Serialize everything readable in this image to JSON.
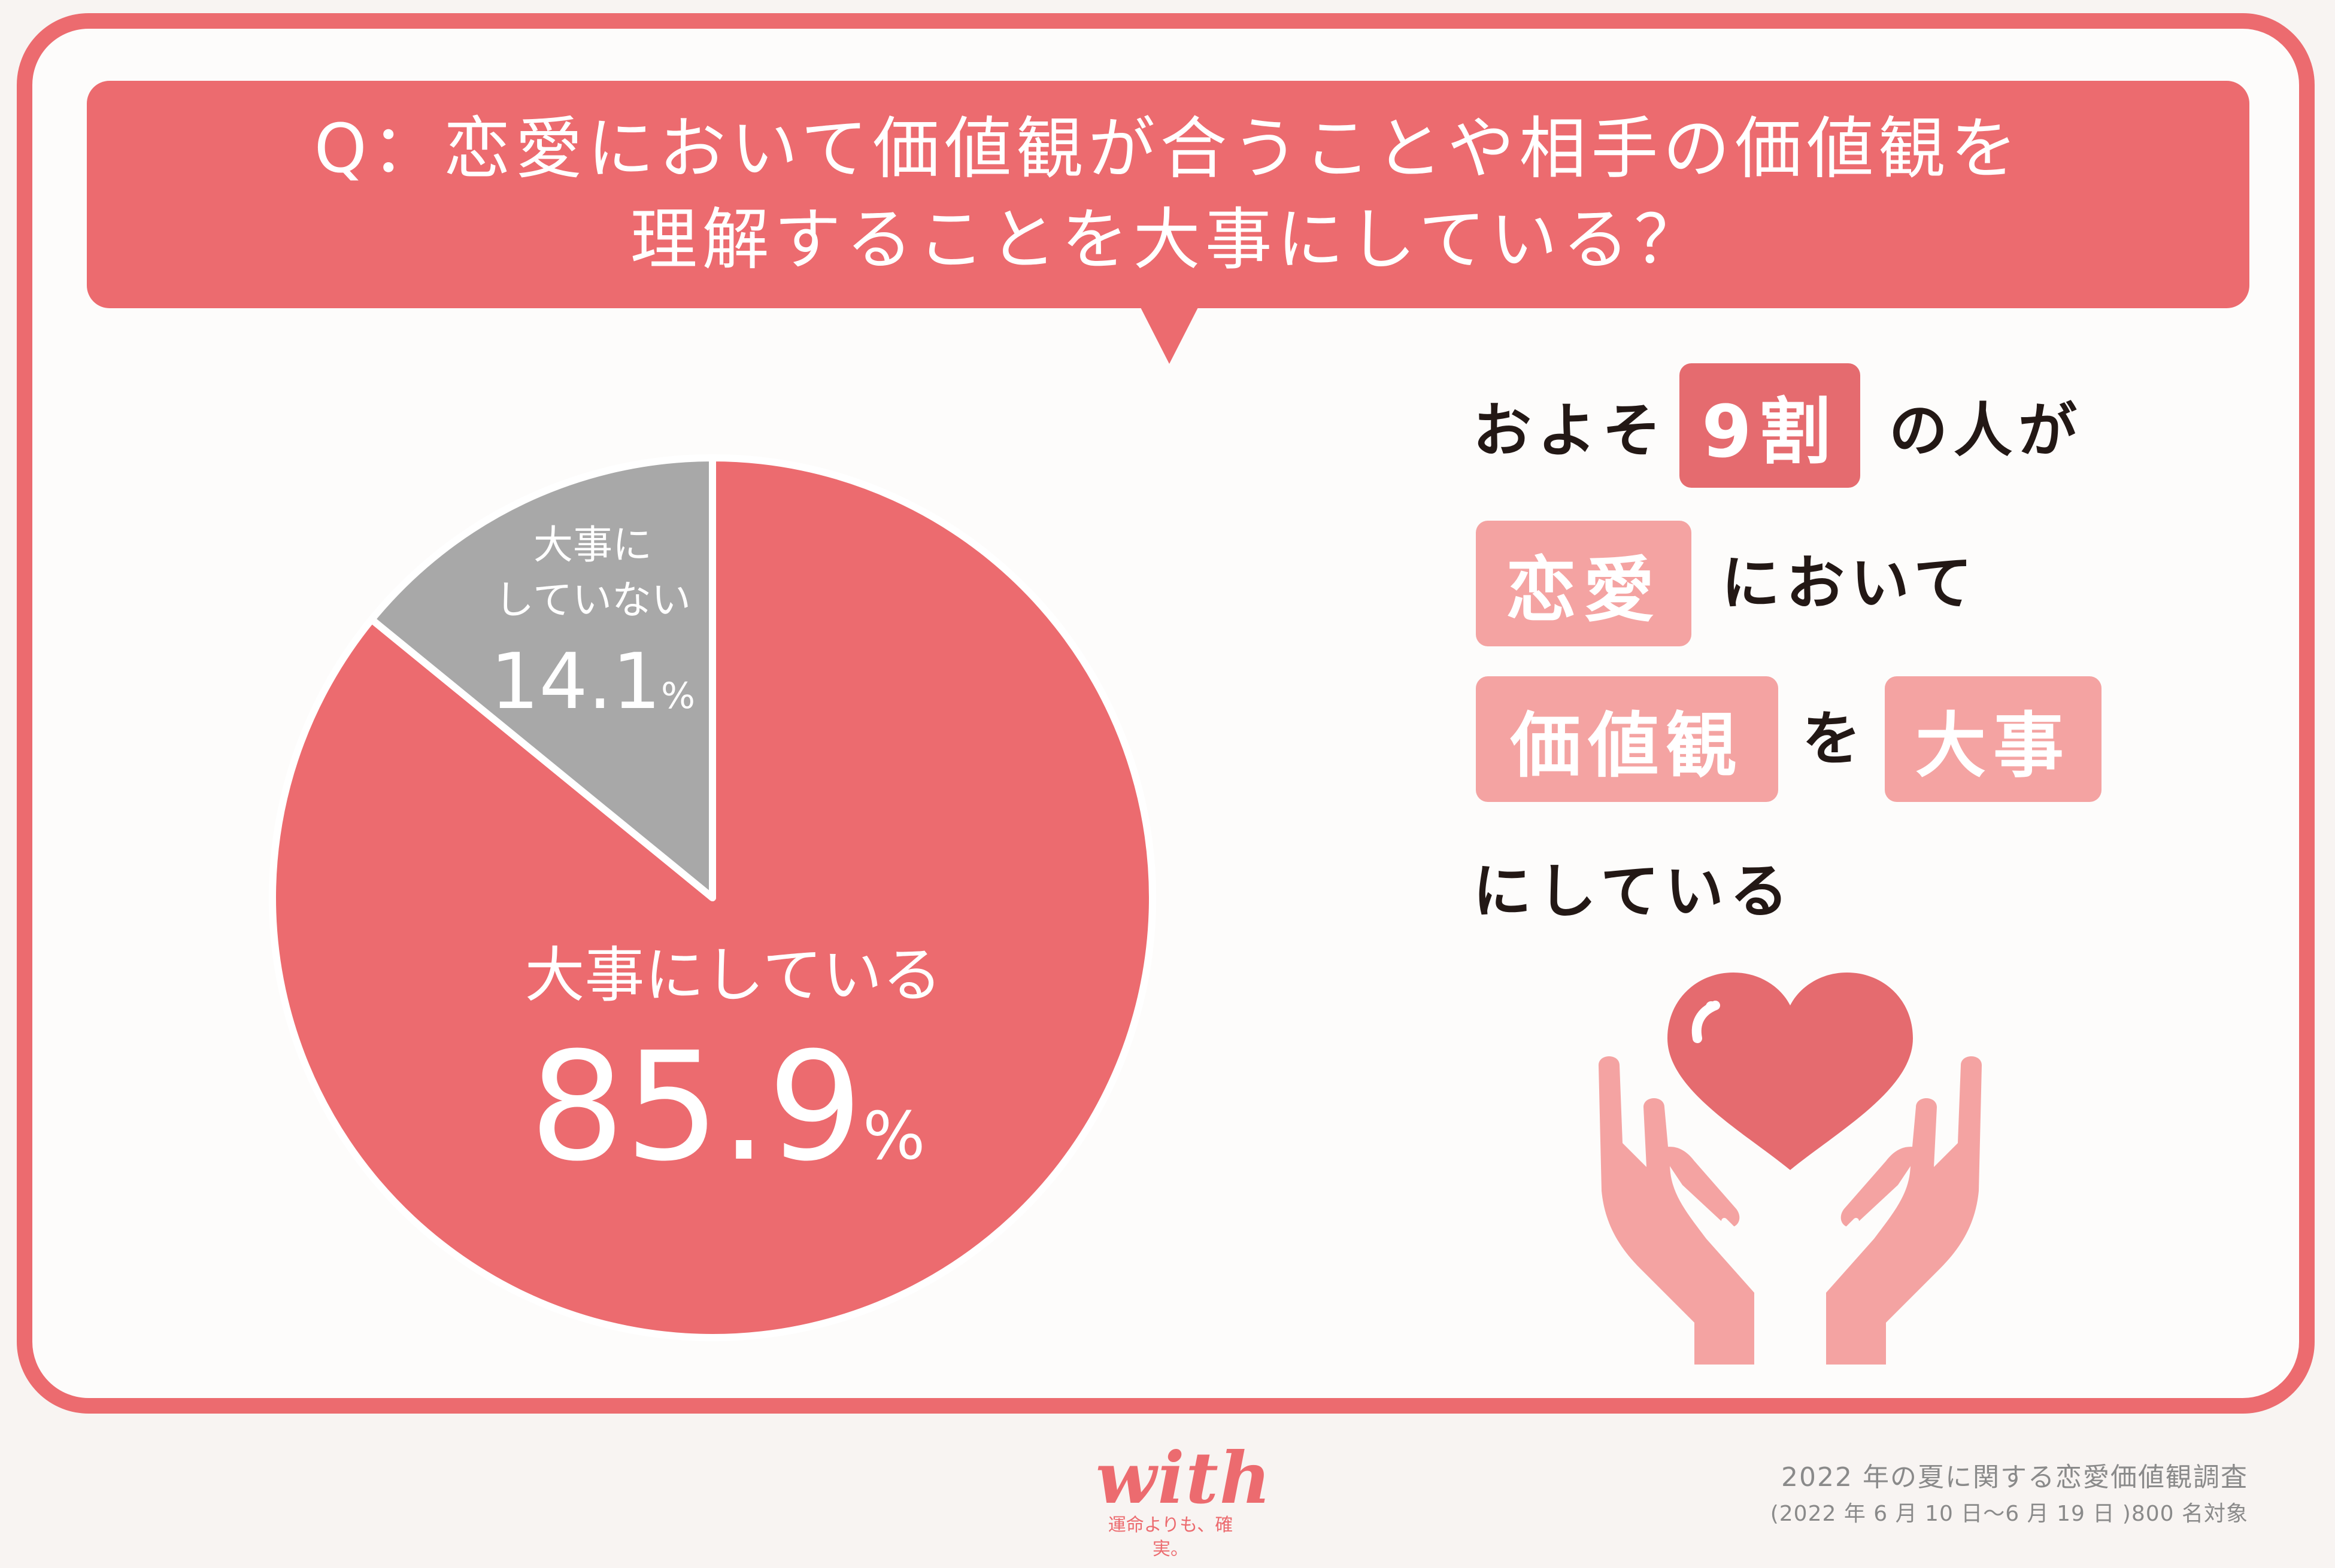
{
  "question": {
    "line1": "Q：恋愛において価値観が合うことや相手の価値観を",
    "line2": "理解することを大事にしている？"
  },
  "chart_data": {
    "type": "pie",
    "title": "",
    "slices": [
      {
        "label": "大事にしている",
        "value": 85.9,
        "value_text": "85.9",
        "color": "#ec6b6f"
      },
      {
        "label_lines": [
          "大事に",
          "していない"
        ],
        "label": "大事にしていない",
        "value": 14.1,
        "value_text": "14.1",
        "color": "#a8a8a8"
      }
    ],
    "unit": "%"
  },
  "summary": {
    "l1_pre": "およそ",
    "l1_chip": "9割",
    "l1_post": "の人が",
    "l2_chip": "恋愛",
    "l2_post": "において",
    "l3_chip1": "価値観",
    "l3_mid": "を",
    "l3_chip2": "大事",
    "l4": "にしている"
  },
  "icons": {
    "hands": "hands-holding-heart-icon"
  },
  "logo": {
    "name": "with",
    "tagline": "運命よりも、確実。"
  },
  "footer": {
    "line1": "2022 年の夏に関する恋愛価値観調査",
    "line2": "(2022 年 6 月 10 日〜6 月 19 日 )800 名対象"
  },
  "colors": {
    "accent": "#ec6b6f",
    "accent_light": "#f4a3a2",
    "gray": "#a8a8a8"
  }
}
